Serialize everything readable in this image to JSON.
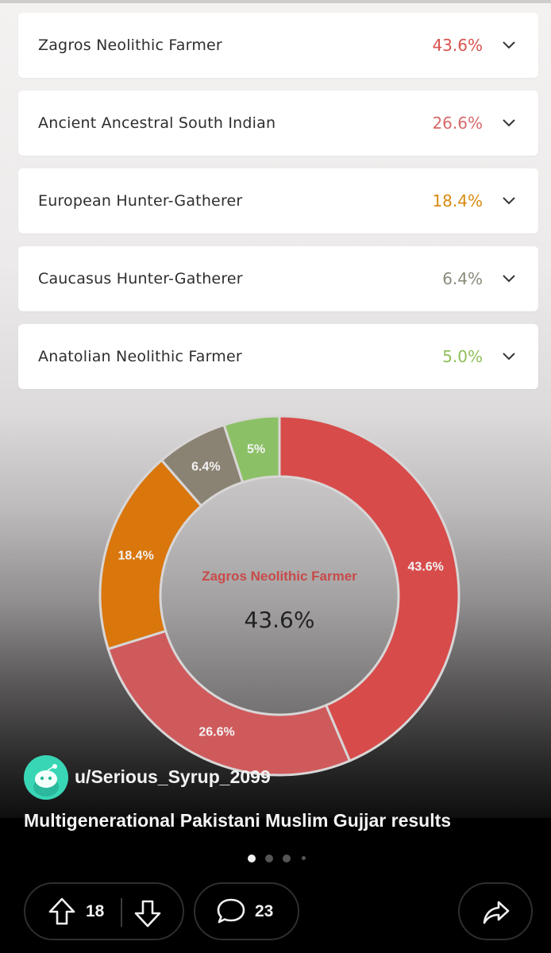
{
  "ancestry_rows": [
    {
      "label": "Zagros Neolithic Farmer",
      "percent": "43.6%",
      "color": "#d9534f"
    },
    {
      "label": "Ancient Ancestral South Indian",
      "percent": "26.6%",
      "color": "#d86a6a"
    },
    {
      "label": "European Hunter-Gatherer",
      "percent": "18.4%",
      "color": "#d98b12"
    },
    {
      "label": "Caucasus Hunter-Gatherer",
      "percent": "6.4%",
      "color": "#8b8a7a"
    },
    {
      "label": "Anatolian Neolithic Farmer",
      "percent": "5.0%",
      "color": "#8fbf5a"
    }
  ],
  "chart_data": {
    "type": "pie",
    "categories": [
      "Zagros Neolithic Farmer",
      "Ancient Ancestral South Indian",
      "European Hunter-Gatherer",
      "Caucasus Hunter-Gatherer",
      "Anatolian Neolithic Farmer"
    ],
    "values": [
      43.6,
      26.6,
      18.4,
      6.4,
      5.0
    ],
    "slice_labels": [
      "43.6%",
      "26.6%",
      "18.4%",
      "6.4%",
      "5%"
    ],
    "colors": [
      "#d84b4b",
      "#cf5a5c",
      "#d9760c",
      "#8a8272",
      "#8cc066"
    ],
    "donut": true,
    "center_label": "Zagros Neolithic Farmer",
    "center_value": "43.6%"
  },
  "post": {
    "username": "u/Serious_Syrup_2099",
    "title": "Multigenerational Pakistani Muslim Gujjar results",
    "carousel": {
      "count": 4,
      "active": 0
    }
  },
  "actions": {
    "upvotes": "18",
    "comments": "23",
    "icons": [
      "upvote-icon",
      "downvote-icon",
      "comment-icon",
      "share-icon"
    ]
  }
}
